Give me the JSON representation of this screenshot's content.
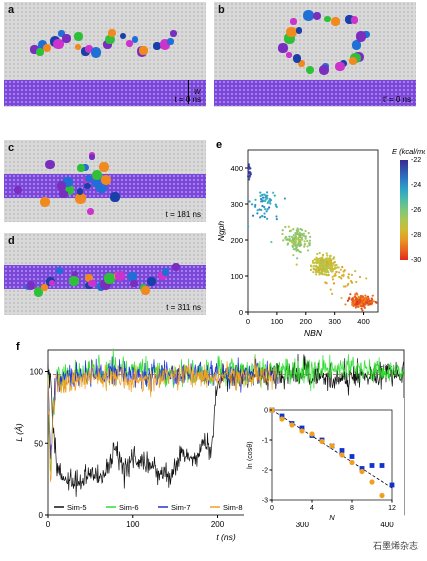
{
  "panels": {
    "a": {
      "label": "a",
      "time": "t = 0 ns",
      "width_label": "w"
    },
    "b": {
      "label": "b",
      "time": "t' = 0 ns"
    },
    "c": {
      "label": "c",
      "time": "t = 181 ns"
    },
    "d": {
      "label": "d",
      "time": "t = 311 ns"
    }
  },
  "colors": {
    "peptide": [
      "#1f6fd6",
      "#7a2ec0",
      "#2fbf3a",
      "#f08a1e",
      "#1a3fa8",
      "#cc33cc"
    ],
    "graphene": "#d9d9d9",
    "hbn": "#7a48d6"
  },
  "watermark": "石墨烯杂志",
  "chart_data": [
    {
      "id": "e",
      "label": "e",
      "type": "scatter",
      "xlabel": "N_BN",
      "ylabel": "N_gph",
      "xlim": [
        0,
        450
      ],
      "ylim": [
        0,
        450
      ],
      "xticks": [
        "0",
        "100",
        "200",
        "300",
        "400"
      ],
      "yticks": [
        "0",
        "100",
        "200",
        "300",
        "400"
      ],
      "colorbar": {
        "title": "E (kcal/mol)",
        "min": -30,
        "max": -22,
        "ticks": [
          "-22",
          "-24",
          "-26",
          "-28",
          "-30"
        ]
      },
      "clusters": [
        {
          "x": 5,
          "y": 390,
          "sx": 4,
          "sy": 14,
          "n": 18,
          "e": -22.2
        },
        {
          "x": 60,
          "y": 300,
          "sx": 22,
          "sy": 18,
          "n": 60,
          "e": -24.2
        },
        {
          "x": 170,
          "y": 200,
          "sx": 22,
          "sy": 16,
          "n": 140,
          "e": -26.4
        },
        {
          "x": 265,
          "y": 130,
          "sx": 18,
          "sy": 12,
          "n": 320,
          "e": -27.3
        },
        {
          "x": 390,
          "y": 30,
          "sx": 18,
          "sy": 8,
          "n": 220,
          "e": -29.2
        },
        {
          "x": 330,
          "y": 90,
          "sx": 30,
          "sy": 25,
          "n": 40,
          "e": -27.8
        }
      ]
    },
    {
      "id": "f",
      "label": "f",
      "type": "line",
      "xlabel": "t (ns)",
      "ylabel": "L (Å)",
      "xlim": [
        0,
        420
      ],
      "ylim": [
        0,
        115
      ],
      "xticks": [
        "0",
        "100",
        "200",
        "300",
        "400"
      ],
      "yticks": [
        "0",
        "50",
        "100"
      ],
      "reference": {
        "label": "Odijk",
        "y": 98
      },
      "series": [
        {
          "name": "Sim-5",
          "color": "#111111",
          "points": [
            [
              0,
              100
            ],
            [
              3,
              95
            ],
            [
              6,
              60
            ],
            [
              10,
              35
            ],
            [
              20,
              25
            ],
            [
              35,
              22
            ],
            [
              50,
              30
            ],
            [
              65,
              25
            ],
            [
              80,
              45
            ],
            [
              90,
              30
            ],
            [
              100,
              40
            ],
            [
              115,
              35
            ],
            [
              130,
              30
            ],
            [
              145,
              28
            ],
            [
              160,
              45
            ],
            [
              175,
              38
            ],
            [
              185,
              50
            ],
            [
              192,
              45
            ],
            [
              198,
              80
            ],
            [
              205,
              100
            ],
            [
              230,
              98
            ],
            [
              260,
              97
            ],
            [
              300,
              100
            ],
            [
              340,
              95
            ],
            [
              370,
              98
            ],
            [
              400,
              97
            ],
            [
              420,
              99
            ]
          ]
        },
        {
          "name": "Sim-6",
          "color": "#33dd33",
          "points": [
            [
              0,
              90
            ],
            [
              3,
              30
            ],
            [
              6,
              75
            ],
            [
              10,
              95
            ],
            [
              50,
              100
            ],
            [
              100,
              102
            ],
            [
              150,
              98
            ],
            [
              200,
              99
            ],
            [
              250,
              101
            ],
            [
              300,
              100
            ],
            [
              350,
              103
            ],
            [
              400,
              100
            ],
            [
              420,
              97
            ]
          ]
        },
        {
          "name": "Sim-7",
          "color": "#2233dd",
          "points": [
            [
              0,
              95
            ],
            [
              3,
              40
            ],
            [
              6,
              80
            ],
            [
              10,
              94
            ],
            [
              50,
              98
            ],
            [
              100,
              97
            ],
            [
              150,
              99
            ],
            [
              200,
              96
            ],
            [
              250,
              99
            ],
            [
              270,
              98
            ]
          ]
        },
        {
          "name": "Sim-8",
          "color": "#f0a020",
          "points": [
            [
              0,
              92
            ],
            [
              3,
              20
            ],
            [
              6,
              70
            ],
            [
              10,
              90
            ],
            [
              50,
              95
            ],
            [
              100,
              94
            ],
            [
              150,
              97
            ],
            [
              200,
              96
            ],
            [
              250,
              97
            ],
            [
              270,
              96
            ]
          ]
        }
      ]
    },
    {
      "id": "f-inset",
      "type": "scatter",
      "xlabel": "N",
      "ylabel": "ln ⟨cosθ⟩",
      "xlim": [
        0,
        12
      ],
      "ylim": [
        -3,
        0
      ],
      "xticks": [
        "0",
        "4",
        "8",
        "12"
      ],
      "yticks": [
        "0",
        "-1",
        "-2",
        "-3"
      ],
      "series": [
        {
          "marker": "square",
          "color": "#1133cc",
          "x": [
            0,
            1,
            2,
            3,
            4,
            5,
            6,
            7,
            8,
            9,
            10,
            11,
            12
          ],
          "y": [
            0,
            -0.2,
            -0.45,
            -0.6,
            -0.85,
            -1.0,
            -1.2,
            -1.35,
            -1.55,
            -1.95,
            -1.85,
            -1.85,
            -2.5
          ]
        },
        {
          "marker": "circle",
          "color": "#f0a020",
          "x": [
            0,
            1,
            2,
            3,
            4,
            5,
            6,
            7,
            8,
            9,
            10,
            11
          ],
          "y": [
            0,
            -0.3,
            -0.5,
            -0.7,
            -0.8,
            -1.05,
            -1.2,
            -1.5,
            -1.75,
            -2.05,
            -2.4,
            -2.85
          ]
        }
      ],
      "fit": {
        "x": [
          0,
          12
        ],
        "y": [
          0,
          -2.6
        ]
      }
    }
  ]
}
